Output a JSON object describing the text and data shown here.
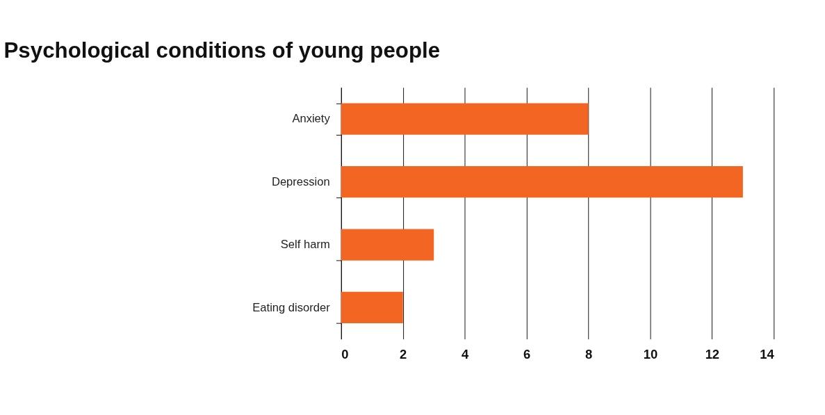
{
  "chart_data": {
    "type": "bar",
    "orientation": "horizontal",
    "title": "Psychological conditions of young people",
    "categories": [
      "Anxiety",
      "Depression",
      "Self harm",
      "Eating disorder"
    ],
    "values": [
      8,
      13,
      3,
      2
    ],
    "color": "#f26522",
    "xlim": [
      0,
      14
    ],
    "xticks": [
      0,
      2,
      4,
      6,
      8,
      10,
      12,
      14
    ],
    "grid": "x"
  }
}
